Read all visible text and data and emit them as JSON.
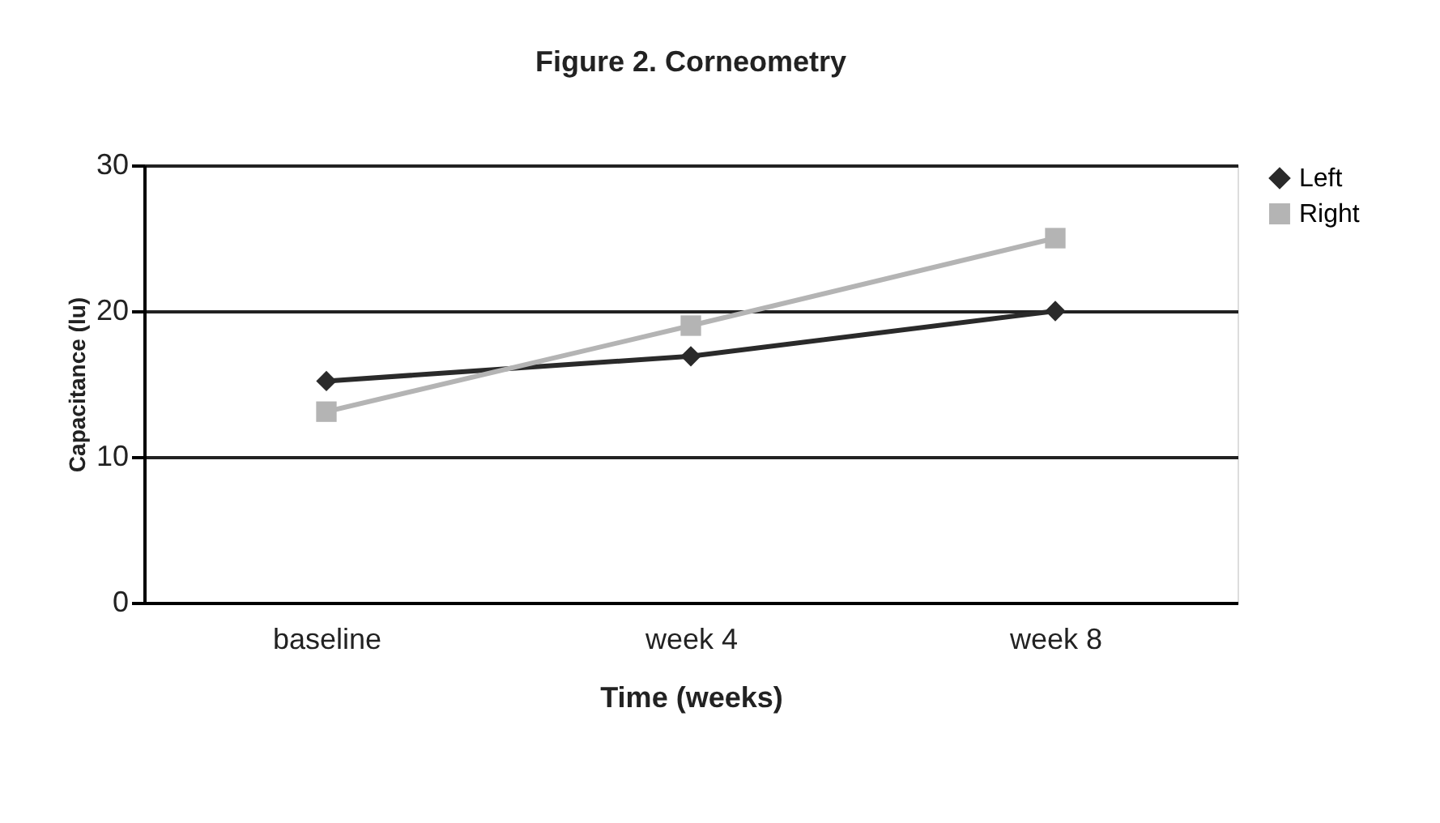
{
  "chart_data": {
    "type": "line",
    "title": "Figure 2. Corneometry",
    "xlabel": "Time (weeks)",
    "ylabel": "Capacitance (lu)",
    "categories": [
      "baseline",
      "week 4",
      "week 8"
    ],
    "series": [
      {
        "name": "Left",
        "color": "#2a2a2a",
        "marker": "diamond",
        "values": [
          15.2,
          16.9,
          20.0
        ]
      },
      {
        "name": "Right",
        "color": "#b4b4b4",
        "marker": "square",
        "values": [
          13.1,
          19.0,
          25.0
        ]
      }
    ],
    "ylim": [
      0,
      30
    ],
    "yticks": [
      0,
      10,
      20,
      30
    ],
    "grid": "y",
    "legend": "right"
  }
}
